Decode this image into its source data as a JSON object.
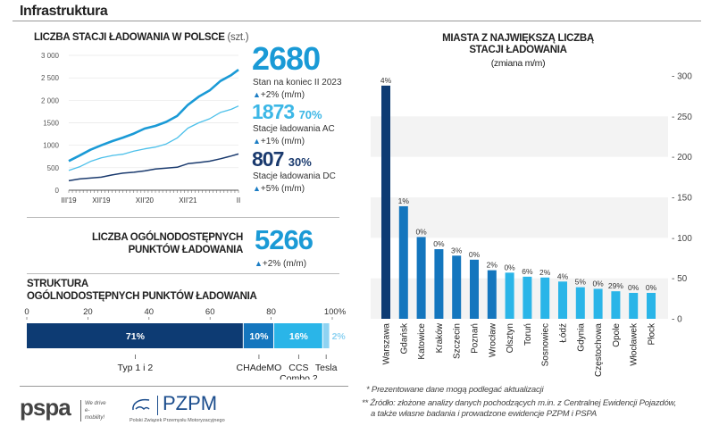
{
  "header": {
    "title": "Infrastruktura"
  },
  "stations": {
    "title": "LICZBA STACJI ŁADOWANIA W POLSCE",
    "unit": "(szt.)",
    "total": {
      "value": "2680",
      "label": "Stan na koniec II 2023",
      "change": "+2% (m/m)"
    },
    "ac": {
      "value": "1873",
      "share": "70%",
      "label": "Stacje ładowania AC",
      "change": "+1% (m/m)"
    },
    "dc": {
      "value": "807",
      "share": "30%",
      "label": "Stacje ładowania DC",
      "change": "+5% (m/m)"
    }
  },
  "points": {
    "title_line1": "LICZBA OGÓLNODOSTĘPNYCH",
    "title_line2": "PUNKTÓW ŁADOWANIA",
    "value": "5266",
    "change": "+2% (m/m)"
  },
  "structure": {
    "title_line1": "STRUKTURA",
    "title_line2": "OGÓLNODOSTĘPNYCH PUNKTÓW ŁADOWANIA"
  },
  "cities": {
    "title_line1": "MIASTA Z NAJWIĘKSZĄ LICZBĄ",
    "title_line2": "STACJI ŁADOWANIA",
    "subtitle": "(zmiana m/m)"
  },
  "footnotes": [
    "* Prezentowane dane mogą podlegać aktualizacji",
    "** Źródło: złożone analizy danych pochodzących m.in. z Centralnej Ewidencji Pojazdów,",
    "a także własne badania i prowadzone ewidencje PZPM i PSPA"
  ],
  "logos": {
    "pspa": "pspa",
    "pspa_tagline": "We drive e-mobility!",
    "pzpm": "PZPM",
    "pzpm_full": "Polski Związek Przemysłu Motoryzacyjnego"
  },
  "chart_data": [
    {
      "type": "line",
      "title": "LICZBA STACJI ŁADOWANIA W POLSCE (szt.)",
      "ylim": [
        0,
        3000
      ],
      "yticks": [
        "0",
        "500",
        "1000",
        "1500",
        "2 000",
        "2 500",
        "3 000"
      ],
      "xtick_labels": [
        "III'19",
        "XII'19",
        "XII'20",
        "XII'21",
        "II"
      ],
      "x": [
        "2019-03",
        "2019-06",
        "2019-09",
        "2019-12",
        "2020-03",
        "2020-06",
        "2020-09",
        "2020-12",
        "2021-03",
        "2021-06",
        "2021-09",
        "2021-12",
        "2022-03",
        "2022-06",
        "2022-09",
        "2022-12",
        "2023-02"
      ],
      "series": [
        {
          "name": "Stan na koniec II 2023",
          "color": "#1a9ad6",
          "values": [
            650,
            770,
            900,
            1000,
            1090,
            1170,
            1260,
            1370,
            1430,
            1520,
            1650,
            1900,
            2080,
            2220,
            2430,
            2560,
            2680
          ]
        },
        {
          "name": "Stacje ładowania AC",
          "color": "#4cc0ea",
          "values": [
            440,
            520,
            640,
            720,
            770,
            800,
            870,
            920,
            960,
            1030,
            1160,
            1380,
            1500,
            1590,
            1730,
            1800,
            1873
          ]
        },
        {
          "name": "Stacje ładowania DC",
          "color": "#1a3a6e",
          "values": [
            210,
            250,
            270,
            290,
            340,
            380,
            400,
            430,
            470,
            490,
            510,
            590,
            615,
            645,
            700,
            760,
            807
          ]
        }
      ]
    },
    {
      "type": "bar",
      "title": "MIASTA Z NAJWIĘKSZĄ LICZBĄ STACJI ŁADOWANIA (zmiana m/m)",
      "ylim": [
        0,
        300
      ],
      "yticks": [
        "0",
        "50",
        "100",
        "150",
        "200",
        "250",
        "300"
      ],
      "categories": [
        "Warszawa",
        "Gdańsk",
        "Katowice",
        "Kraków",
        "Szczecin",
        "Poznań",
        "Wrocław",
        "Olsztyn",
        "Toruń",
        "Sosnowiec",
        "Łódź",
        "Gdynia",
        "Częstochowa",
        "Opole",
        "Włocławek",
        "Płock"
      ],
      "values": [
        288,
        139,
        101,
        86,
        78,
        73,
        60,
        57,
        52,
        51,
        46,
        39,
        37,
        34,
        32,
        32
      ],
      "data_labels": [
        "4%",
        "1%",
        "0%",
        "0%",
        "3%",
        "0%",
        "2%",
        "0%",
        "6%",
        "2%",
        "4%",
        "5%",
        "0%",
        "29%",
        "0%",
        "0%"
      ],
      "colors": [
        "#0d3b73",
        "#1476be",
        "#1476be",
        "#1476be",
        "#1476be",
        "#1476be",
        "#1476be",
        "#2ab5e8",
        "#2ab5e8",
        "#2ab5e8",
        "#2ab5e8",
        "#2ab5e8",
        "#2ab5e8",
        "#2ab5e8",
        "#2ab5e8",
        "#2ab5e8"
      ],
      "grid": "alternating bands"
    },
    {
      "type": "bar",
      "orientation": "horizontal-stacked",
      "xlim": [
        0,
        100
      ],
      "xticks": [
        "0",
        "20",
        "40",
        "60",
        "80",
        "100%"
      ],
      "categories": [
        "Typ 1 i 2",
        "CHAdeMO",
        "CCS Combo 2",
        "Tesla"
      ],
      "values": [
        71,
        10,
        16,
        2
      ],
      "data_labels": [
        "71%",
        "10%",
        "16%",
        "2%"
      ],
      "colors": [
        "#0d3b73",
        "#1476be",
        "#2ab5e8",
        "#8fd3f2"
      ]
    }
  ]
}
